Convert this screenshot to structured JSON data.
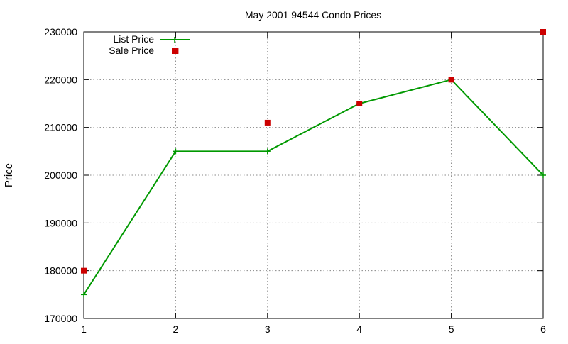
{
  "chart_data": {
    "type": "line",
    "title": "May 2001 94544 Condo Prices",
    "xlabel": "",
    "ylabel": "Price",
    "x": [
      1,
      2,
      3,
      4,
      5,
      6
    ],
    "xlim": [
      1,
      6
    ],
    "ylim": [
      170000,
      230000
    ],
    "x_ticks": [
      "1",
      "2",
      "3",
      "4",
      "5",
      "6"
    ],
    "y_ticks": [
      "170000",
      "180000",
      "190000",
      "200000",
      "210000",
      "220000",
      "230000"
    ],
    "grid": true,
    "legend_position": "top-left",
    "series": [
      {
        "name": "List Price",
        "style": "line+cross",
        "color": "#009900",
        "values": [
          175000,
          205000,
          205000,
          215000,
          220000,
          200000
        ]
      },
      {
        "name": "Sale Price",
        "style": "square-points",
        "color": "#cc0000",
        "values": [
          180000,
          226000,
          211000,
          215000,
          220000,
          230000
        ]
      }
    ]
  }
}
